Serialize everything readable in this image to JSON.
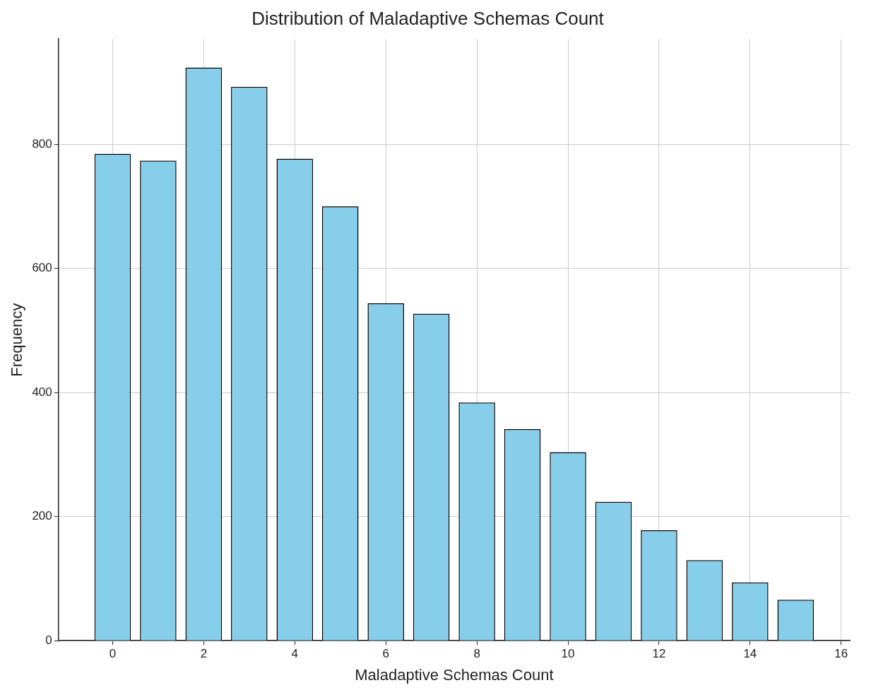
{
  "chart_data": {
    "type": "bar",
    "title": "Distribution of Maladaptive Schemas Count",
    "xlabel": "Maladaptive Schemas Count",
    "ylabel": "Frequency",
    "x": [
      0,
      1,
      2,
      3,
      4,
      5,
      6,
      7,
      8,
      9,
      10,
      11,
      12,
      13,
      14,
      15
    ],
    "values": [
      785,
      774,
      924,
      893,
      777,
      700,
      544,
      527,
      384,
      341,
      304,
      224,
      178,
      130,
      94,
      66
    ],
    "color": "#87ceeb",
    "xlim": [
      -1.19,
      16.19
    ],
    "xticks": [
      0,
      2,
      4,
      6,
      8,
      10,
      12,
      14,
      16
    ],
    "ylim": [
      0,
      970
    ],
    "yticks": [
      0,
      200,
      400,
      600,
      800
    ],
    "grid": true
  }
}
